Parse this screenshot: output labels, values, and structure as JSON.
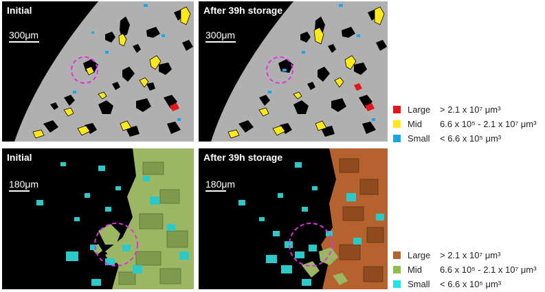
{
  "panels": {
    "top_left": {
      "title": "Initial",
      "scale": "300μm"
    },
    "top_right": {
      "title": "After 39h storage",
      "scale": "300μm"
    },
    "bottom_left": {
      "title": "Initial",
      "scale": "180μm"
    },
    "bottom_right": {
      "title": "After 39h storage",
      "scale": "180μm"
    }
  },
  "legend_top": [
    {
      "name": "Large",
      "range": "> 2.1 x 10⁷ μm³",
      "color": "#e8141b"
    },
    {
      "name": "Mid",
      "range": "6.6 x 10⁵ - 2.1 x 10⁷ μm³",
      "color": "#ffe81a"
    },
    {
      "name": "Small",
      "range": "< 6.6 x 10⁵ μm³",
      "color": "#1aa5e6"
    }
  ],
  "legend_bottom": [
    {
      "name": "Large",
      "range": "> 2.1 x 10⁷ μm³",
      "color": "#b5622e"
    },
    {
      "name": "Mid",
      "range": "6.6 x 10⁵ - 2.1 x 10⁷ μm³",
      "color": "#8fbf4a"
    },
    {
      "name": "Small",
      "range": "< 6.6 x 10⁵ μm³",
      "color": "#1ee6e6"
    }
  ],
  "colors": {
    "background": "#000000",
    "matrix": "#b0b0b0",
    "highlight_circle": "#e030e0"
  }
}
